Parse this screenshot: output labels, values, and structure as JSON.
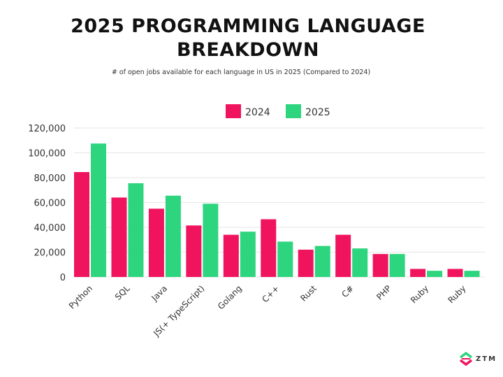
{
  "chart_data": {
    "type": "bar",
    "title": "2025 PROGRAMMING LANGUAGE BREAKDOWN",
    "title_lines": [
      "2025 PROGRAMMING LANGUAGE",
      "BREAKDOWN"
    ],
    "subtitle": "# of open jobs available for each language in US in 2025 (Compared to 2024)",
    "categories": [
      "Python",
      "SQL",
      "Java",
      "JS(+ TypeScript)",
      "Golang",
      "C++",
      "Rust",
      "C#",
      "PHP",
      "Ruby",
      "Ruby"
    ],
    "series": [
      {
        "name": "2024",
        "color": "#f0145f",
        "values": [
          84500,
          64000,
          55000,
          41500,
          34000,
          46500,
          22000,
          34000,
          18500,
          6500,
          6500
        ]
      },
      {
        "name": "2025",
        "color": "#2ed57f",
        "values": [
          107500,
          75500,
          65500,
          59000,
          36500,
          28500,
          25000,
          23000,
          18500,
          5000,
          5000
        ]
      }
    ],
    "ylim": [
      0,
      120000
    ],
    "yticks": [
      0,
      20000,
      40000,
      60000,
      80000,
      100000,
      120000
    ],
    "ytick_labels": [
      "0",
      "20,000",
      "40,000",
      "60,000",
      "80,000",
      "100,000",
      "120,000"
    ],
    "grid": true,
    "legend_placement": "top-center",
    "xlabel": "",
    "ylabel": ""
  },
  "logo": {
    "text": "ZTM"
  }
}
